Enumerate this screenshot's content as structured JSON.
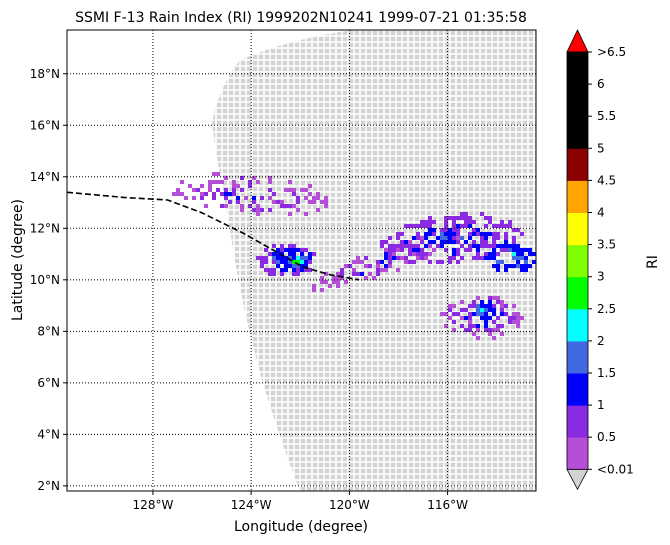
{
  "title": "SSMI F-13 Rain Index (RI) 1999202N10241 1999-07-21 01:35:58",
  "chart_data": {
    "type": "heatmap",
    "title": "SSMI F-13 Rain Index (RI) 1999202N10241 1999-07-21 01:35:58",
    "xlabel": "Longitude (degree)",
    "ylabel": "Latitude (degree)",
    "xlim": [
      -131.5,
      -112.4
    ],
    "ylim": [
      1.8,
      19.7
    ],
    "grid": true,
    "x_ticks": [
      -128,
      -124,
      -120,
      -116
    ],
    "x_tick_labels": [
      "128°W",
      "124°W",
      "120°W",
      "116°W"
    ],
    "y_ticks": [
      2,
      4,
      6,
      8,
      10,
      12,
      14,
      16,
      18
    ],
    "y_tick_labels": [
      "2°N",
      "4°N",
      "6°N",
      "8°N",
      "10°N",
      "12°N",
      "14°N",
      "16°N",
      "18°N"
    ],
    "colorbar": {
      "label": "RI",
      "levels": [
        "<0.01",
        "0.5",
        "1",
        "1.5",
        "2",
        "2.5",
        "3",
        "3.5",
        "4",
        "4.5",
        "5",
        "5.5",
        "6",
        ">6.5"
      ],
      "colors": [
        "#b44fd6",
        "#8a2be2",
        "#0000ff",
        "#4169e1",
        "#00ffff",
        "#00ff00",
        "#7fff00",
        "#ffff00",
        "#ffa500",
        "#8b0000",
        "#000000",
        "#000000",
        "#000000"
      ],
      "under_color": "#d3d3d3",
      "over_color": "#ff0000"
    },
    "swath_color": "#d3d3d3",
    "track": {
      "style": "dashed",
      "color": "#000000",
      "lon": [
        -131.5,
        -129.2,
        -127.4,
        -126.0,
        -124.3,
        -123.0,
        -121.9,
        -120.8,
        -119.6
      ],
      "lat": [
        13.4,
        13.2,
        13.1,
        12.6,
        11.8,
        11.1,
        10.5,
        10.2,
        10.0
      ]
    },
    "rain_clusters": [
      {
        "lon": -122.2,
        "lat": 10.8,
        "ri": 3.0
      },
      {
        "lon": -116.2,
        "lat": 11.7,
        "ri": 2.0
      },
      {
        "lon": -114.6,
        "lat": 8.9,
        "ri": 2.5
      }
    ]
  }
}
